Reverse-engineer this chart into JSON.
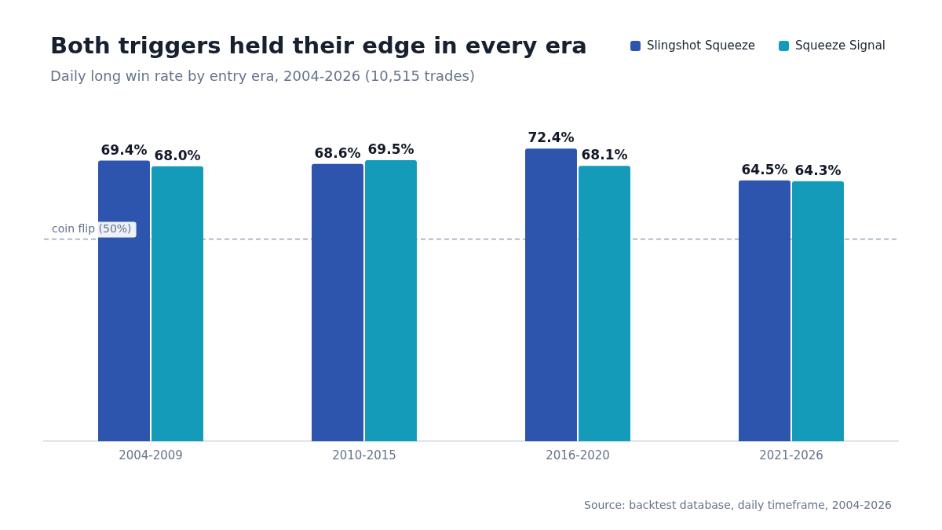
{
  "chart_data": {
    "type": "bar",
    "title": "Both triggers held their edge in every era",
    "subtitle": "Daily long win rate by entry era, 2004-2026 (10,515 trades)",
    "categories": [
      "2004-2009",
      "2010-2015",
      "2016-2020",
      "2021-2026"
    ],
    "series": [
      {
        "name": "Slingshot Squeeze",
        "color": "#2d55ae",
        "values": [
          69.4,
          68.6,
          72.4,
          64.5
        ],
        "value_labels": [
          "69.4%",
          "68.6%",
          "72.4%",
          "64.5%"
        ]
      },
      {
        "name": "Squeeze Signal",
        "color": "#149bb9",
        "values": [
          68.0,
          69.5,
          68.1,
          64.3
        ],
        "value_labels": [
          "68.0%",
          "69.5%",
          "68.1%",
          "64.3%"
        ]
      }
    ],
    "tick_labels": "x",
    "legend": "top right",
    "ref_lines": [
      {
        "axis": "y",
        "value": 50,
        "label": "coin flip (50%)",
        "color": "#94a3b8",
        "line_style": "dashed"
      }
    ],
    "annotations": [
      "Source: backtest database, daily timeframe, 2004-2026"
    ]
  }
}
